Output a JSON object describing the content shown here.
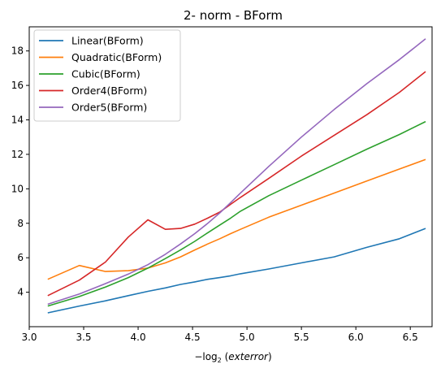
{
  "chart_data": {
    "type": "line",
    "title": "2- norm - BForm",
    "xlabel_prefix": "−log",
    "xlabel_sub": "2",
    "xlabel_arg": "exterror",
    "ylabel": "",
    "xlim": [
      3.0,
      6.7
    ],
    "ylim": [
      2.0,
      19.4
    ],
    "xticks": [
      3.0,
      3.5,
      4.0,
      4.5,
      5.0,
      5.5,
      6.0,
      6.5
    ],
    "xtick_labels": [
      "3.0",
      "3.5",
      "4.0",
      "4.5",
      "5.0",
      "5.5",
      "6.0",
      "6.5"
    ],
    "yticks": [
      4,
      6,
      8,
      10,
      12,
      14,
      16,
      18
    ],
    "ytick_labels": [
      "4",
      "6",
      "8",
      "10",
      "12",
      "14",
      "16",
      "18"
    ],
    "grid": false,
    "legend_position": "top-left",
    "series": [
      {
        "name": "Linear(BForm)",
        "color": "#1f77b4",
        "x": [
          3.17,
          3.46,
          3.7,
          3.91,
          4.09,
          4.25,
          4.39,
          4.52,
          4.64,
          4.75,
          4.85,
          4.94,
          5.2,
          5.5,
          5.8,
          6.1,
          6.4,
          6.64
        ],
        "y": [
          2.8,
          3.2,
          3.5,
          3.8,
          4.05,
          4.25,
          4.45,
          4.6,
          4.75,
          4.85,
          4.95,
          5.07,
          5.35,
          5.7,
          6.05,
          6.6,
          7.1,
          7.7
        ]
      },
      {
        "name": "Quadratic(BForm)",
        "color": "#ff7f0e",
        "x": [
          3.17,
          3.46,
          3.7,
          3.91,
          4.09,
          4.25,
          4.39,
          4.52,
          4.64,
          4.75,
          4.85,
          4.94,
          5.2,
          5.5,
          5.8,
          6.1,
          6.4,
          6.64
        ],
        "y": [
          4.75,
          5.55,
          5.2,
          5.25,
          5.4,
          5.7,
          6.05,
          6.45,
          6.8,
          7.1,
          7.4,
          7.65,
          8.35,
          9.05,
          9.75,
          10.45,
          11.15,
          11.7
        ]
      },
      {
        "name": "Cubic(BForm)",
        "color": "#2ca02c",
        "x": [
          3.17,
          3.46,
          3.7,
          3.91,
          4.09,
          4.25,
          4.39,
          4.52,
          4.64,
          4.75,
          4.85,
          4.94,
          5.2,
          5.5,
          5.8,
          6.1,
          6.4,
          6.64
        ],
        "y": [
          3.2,
          3.75,
          4.3,
          4.85,
          5.4,
          5.95,
          6.45,
          6.95,
          7.45,
          7.9,
          8.3,
          8.7,
          9.6,
          10.5,
          11.4,
          12.3,
          13.15,
          13.9
        ]
      },
      {
        "name": "Order4(BForm)",
        "color": "#d62728",
        "x": [
          3.17,
          3.46,
          3.7,
          3.91,
          4.09,
          4.25,
          4.39,
          4.52,
          4.64,
          4.75,
          4.85,
          4.94,
          5.2,
          5.5,
          5.8,
          6.1,
          6.4,
          6.64
        ],
        "y": [
          3.8,
          4.7,
          5.75,
          7.2,
          8.2,
          7.65,
          7.7,
          7.95,
          8.3,
          8.65,
          9.1,
          9.5,
          10.6,
          11.9,
          13.1,
          14.3,
          15.6,
          16.8
        ]
      },
      {
        "name": "Order5(BForm)",
        "color": "#9467bd",
        "x": [
          3.17,
          3.46,
          3.7,
          3.91,
          4.09,
          4.25,
          4.39,
          4.52,
          4.64,
          4.75,
          4.85,
          4.94,
          5.2,
          5.5,
          5.8,
          6.1,
          6.4,
          6.64
        ],
        "y": [
          3.3,
          3.9,
          4.5,
          5.05,
          5.6,
          6.2,
          6.8,
          7.4,
          8.0,
          8.6,
          9.2,
          9.75,
          11.3,
          13.0,
          14.6,
          16.1,
          17.5,
          18.7
        ]
      }
    ]
  }
}
